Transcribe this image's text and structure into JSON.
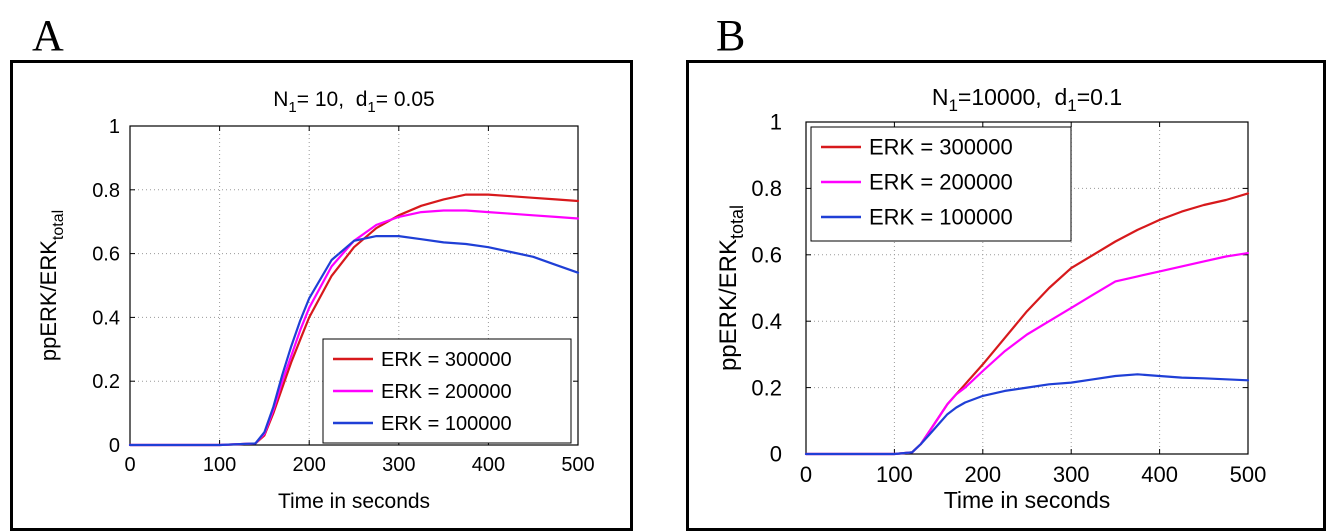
{
  "panels": [
    {
      "letter": "A"
    },
    {
      "letter": "B"
    }
  ],
  "chart_data": [
    {
      "type": "line",
      "title": {
        "prefix": "N",
        "sub1": "1",
        "mid": "= 10,  d",
        "sub2": "1",
        "suffix": "= 0.05"
      },
      "xlabel": "Time in seconds",
      "ylabel": {
        "main": "ppERK/ERK",
        "sub": "total"
      },
      "xlim": [
        0,
        500
      ],
      "ylim": [
        0,
        1
      ],
      "xticks": [
        "0",
        "100",
        "200",
        "300",
        "400",
        "500"
      ],
      "yticks": [
        "0",
        "0.2",
        "0.4",
        "0.6",
        "0.8",
        "1"
      ],
      "grid": true,
      "legend_position": "bottom-right",
      "x": [
        0,
        100,
        140,
        150,
        160,
        170,
        180,
        190,
        200,
        225,
        250,
        275,
        300,
        325,
        350,
        375,
        400,
        425,
        450,
        475,
        500
      ],
      "series": [
        {
          "name": "ERK = 300000",
          "color": "#d7191c",
          "values": [
            0,
            0,
            0.005,
            0.03,
            0.1,
            0.18,
            0.26,
            0.33,
            0.4,
            0.53,
            0.62,
            0.68,
            0.72,
            0.75,
            0.77,
            0.785,
            0.785,
            0.78,
            0.775,
            0.77,
            0.765
          ]
        },
        {
          "name": "ERK = 200000",
          "color": "#ff00ff",
          "values": [
            0,
            0,
            0.005,
            0.035,
            0.11,
            0.2,
            0.28,
            0.36,
            0.43,
            0.56,
            0.64,
            0.69,
            0.715,
            0.73,
            0.735,
            0.735,
            0.73,
            0.725,
            0.72,
            0.715,
            0.71
          ]
        },
        {
          "name": "ERK = 100000",
          "color": "#1f3fd6",
          "values": [
            0,
            0,
            0.005,
            0.04,
            0.12,
            0.22,
            0.31,
            0.39,
            0.46,
            0.58,
            0.64,
            0.655,
            0.655,
            0.645,
            0.635,
            0.63,
            0.62,
            0.605,
            0.59,
            0.565,
            0.54
          ]
        }
      ]
    },
    {
      "type": "line",
      "title": {
        "prefix": "N",
        "sub1": "1",
        "mid": "=10000,  d",
        "sub2": "1",
        "suffix": "=0.1"
      },
      "xlabel": "Time in seconds",
      "ylabel": {
        "main": "ppERK/ERK",
        "sub": "total"
      },
      "xlim": [
        0,
        500
      ],
      "ylim": [
        0,
        1
      ],
      "xticks": [
        "0",
        "100",
        "200",
        "300",
        "400",
        "500"
      ],
      "yticks": [
        "0",
        "0.2",
        "0.4",
        "0.6",
        "0.8",
        "1"
      ],
      "grid": true,
      "legend_position": "top-left",
      "x": [
        0,
        100,
        120,
        130,
        140,
        150,
        160,
        170,
        180,
        200,
        225,
        250,
        275,
        300,
        325,
        350,
        375,
        400,
        425,
        450,
        475,
        500
      ],
      "series": [
        {
          "name": "ERK = 300000",
          "color": "#d7191c",
          "values": [
            0,
            0,
            0.005,
            0.03,
            0.07,
            0.11,
            0.15,
            0.18,
            0.21,
            0.27,
            0.35,
            0.43,
            0.5,
            0.56,
            0.6,
            0.64,
            0.675,
            0.705,
            0.73,
            0.75,
            0.765,
            0.785
          ]
        },
        {
          "name": "ERK = 200000",
          "color": "#ff00ff",
          "values": [
            0,
            0,
            0.005,
            0.03,
            0.07,
            0.11,
            0.15,
            0.18,
            0.2,
            0.25,
            0.31,
            0.36,
            0.4,
            0.44,
            0.48,
            0.52,
            0.535,
            0.55,
            0.565,
            0.58,
            0.595,
            0.605
          ]
        },
        {
          "name": "ERK = 100000",
          "color": "#1f3fd6",
          "values": [
            0,
            0,
            0.005,
            0.03,
            0.06,
            0.09,
            0.12,
            0.14,
            0.155,
            0.175,
            0.19,
            0.2,
            0.21,
            0.215,
            0.225,
            0.235,
            0.24,
            0.235,
            0.23,
            0.228,
            0.225,
            0.222
          ]
        }
      ]
    }
  ]
}
